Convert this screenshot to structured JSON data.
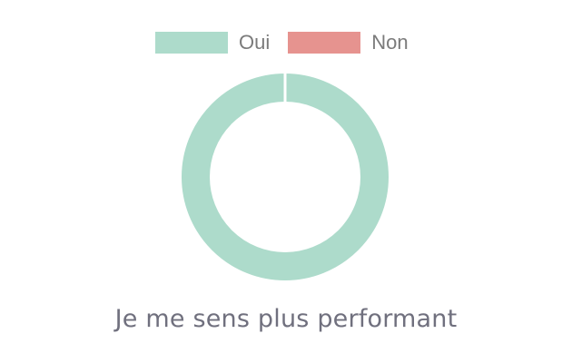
{
  "chart_data": {
    "type": "pie",
    "variant": "doughnut",
    "title": "Je me sens plus performant",
    "categories": [
      "Oui",
      "Non"
    ],
    "values": [
      100,
      0
    ],
    "unit": "percent",
    "colors": [
      "#addbcb",
      "#e6938f"
    ],
    "legend_position": "top"
  }
}
